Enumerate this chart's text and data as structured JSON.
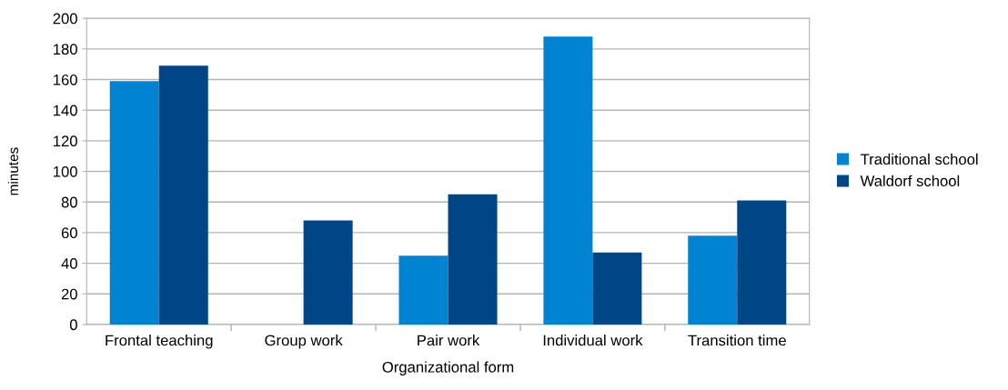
{
  "chart_data": {
    "type": "bar",
    "xlabel": "Organizational form",
    "ylabel": "minutes",
    "categories": [
      "Frontal teaching",
      "Group work",
      "Pair work",
      "Individual work",
      "Transition time"
    ],
    "series": [
      {
        "name": "Traditional school",
        "color": "#0084d1",
        "values": [
          159,
          0,
          45,
          188,
          58
        ]
      },
      {
        "name": "Waldorf school",
        "color": "#004586",
        "values": [
          169,
          68,
          85,
          47,
          81
        ]
      }
    ],
    "ylim": [
      0,
      200
    ],
    "yticks": [
      0,
      20,
      40,
      60,
      80,
      100,
      120,
      140,
      160,
      180,
      200
    ],
    "grid": "y",
    "legend": "right"
  }
}
